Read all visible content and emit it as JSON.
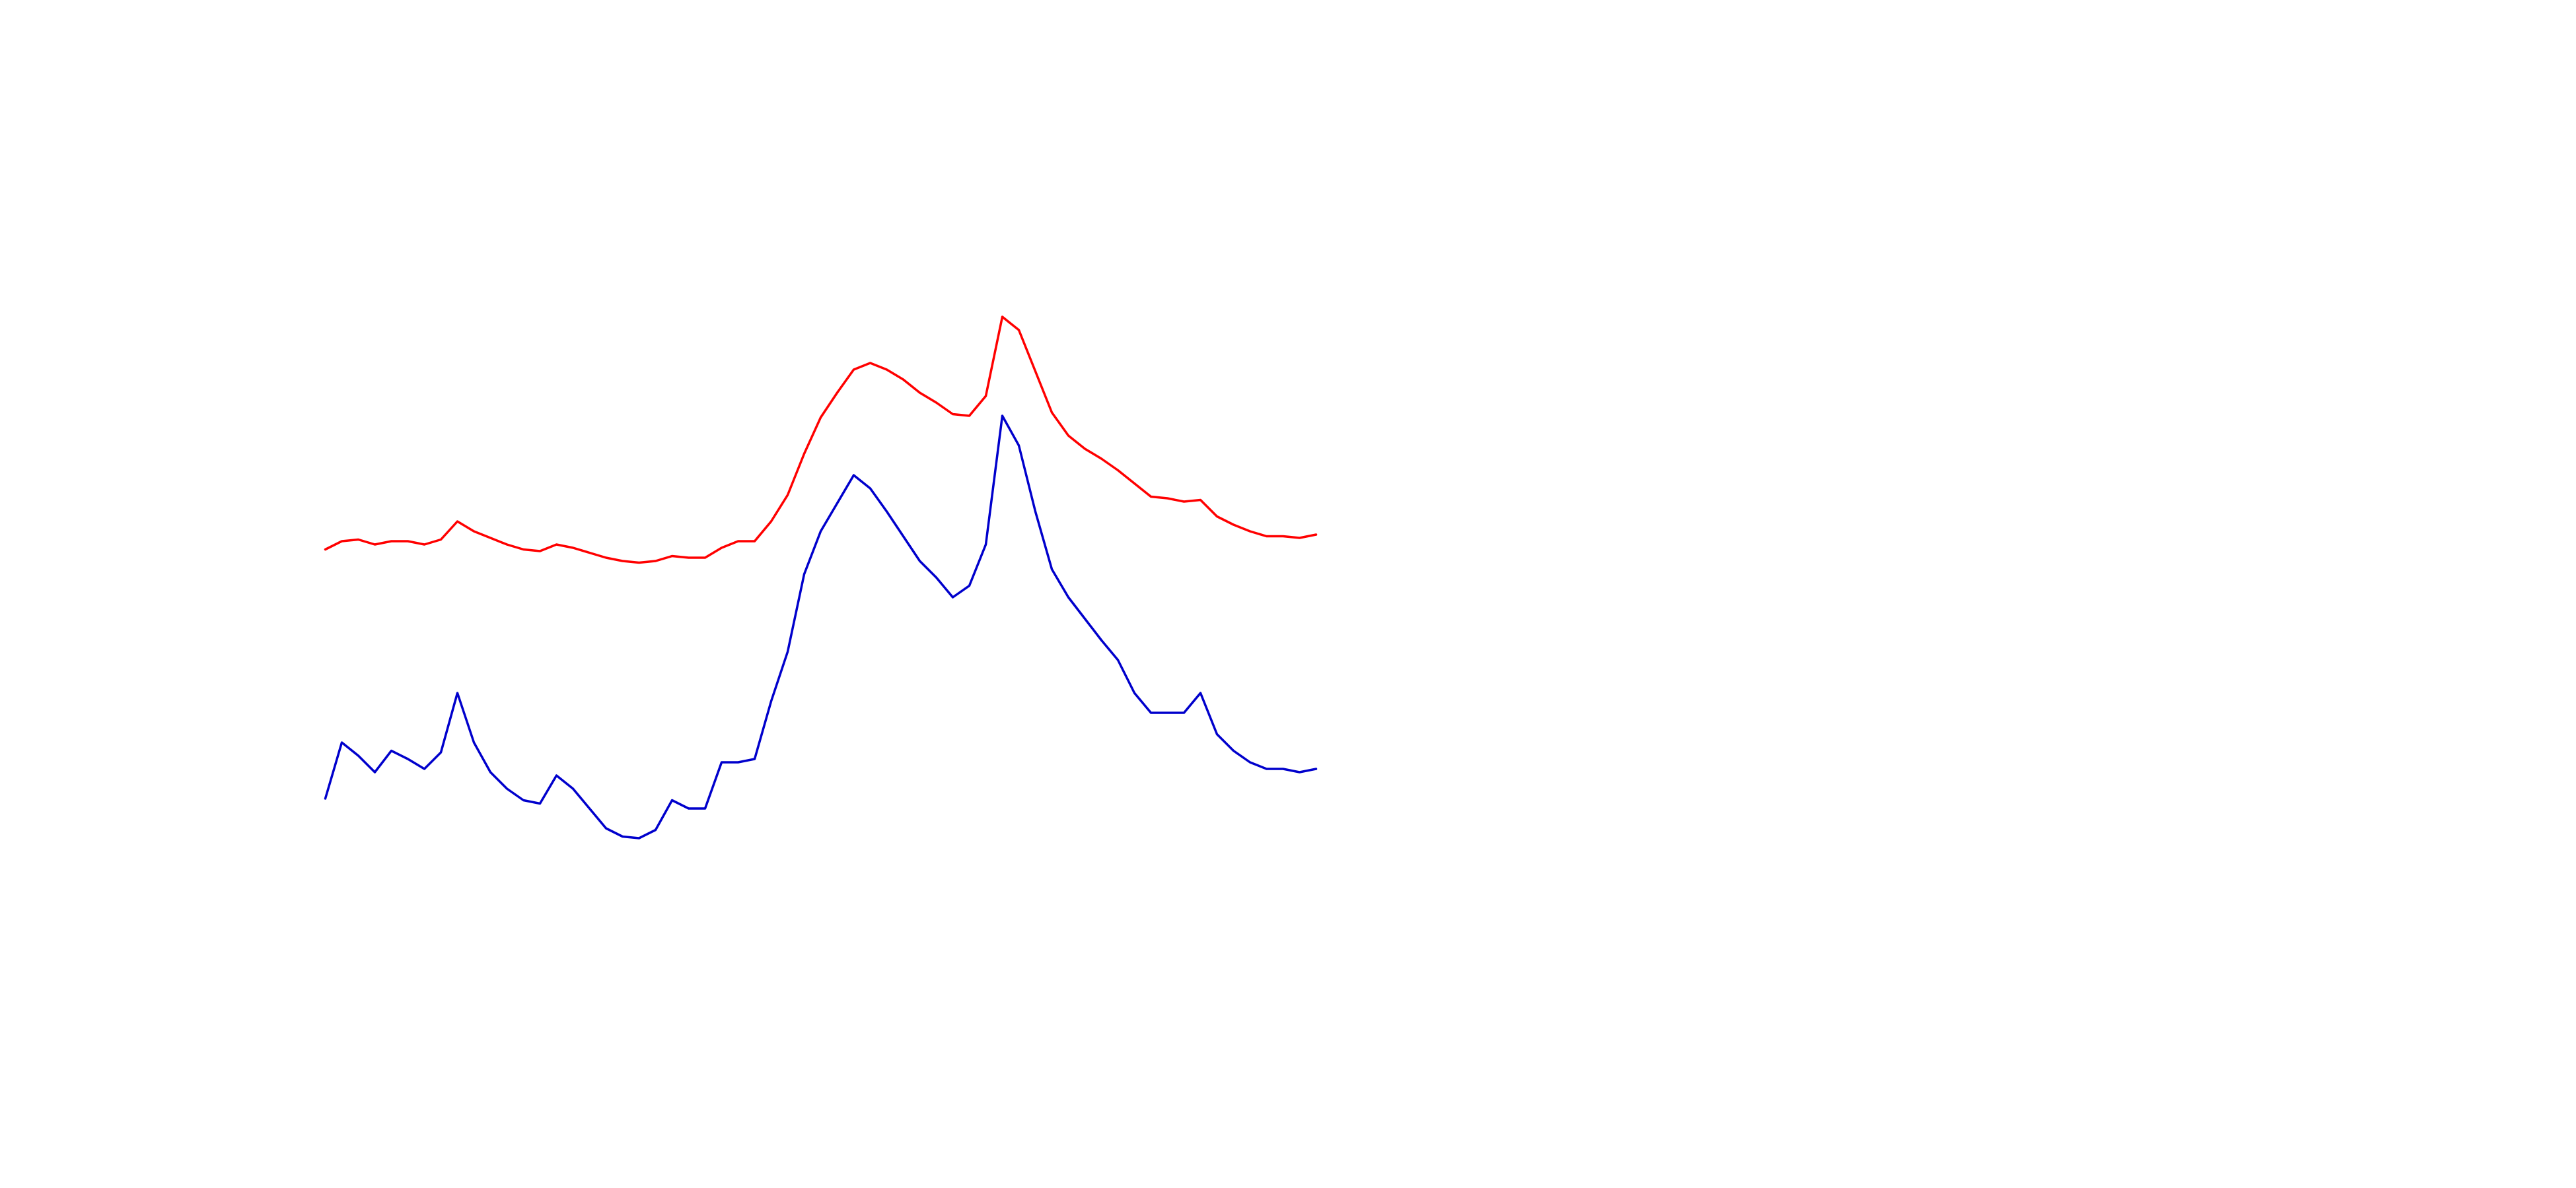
{
  "chart_data": {
    "type": "line",
    "x": [
      0,
      1,
      2,
      3,
      4,
      5,
      6,
      7,
      8,
      9,
      10,
      11,
      12,
      13,
      14,
      15,
      16,
      17,
      18,
      19,
      20,
      21,
      22,
      23,
      24,
      25,
      26,
      27,
      28,
      29,
      30,
      31,
      32,
      33,
      34,
      35,
      36,
      37,
      38,
      39,
      40,
      41,
      42,
      43,
      44,
      45,
      46,
      47,
      48,
      49,
      50,
      51,
      52,
      53,
      54,
      55,
      56,
      57,
      58,
      59,
      60
    ],
    "xlim": [
      0,
      60
    ],
    "ylim": [
      0,
      720
    ],
    "series": [
      {
        "color": "#ff0000",
        "values": [
          387,
          392,
          393,
          390,
          392,
          392,
          390,
          393,
          404,
          398,
          394,
          390,
          387,
          386,
          390,
          388,
          385,
          382,
          380,
          379,
          380,
          383,
          382,
          382,
          388,
          392,
          392,
          404,
          420,
          445,
          467,
          482,
          496,
          500,
          496,
          490,
          482,
          476,
          469,
          468,
          480,
          528,
          520,
          495,
          470,
          456,
          448,
          442,
          435,
          427,
          419,
          418,
          416,
          417,
          407,
          402,
          398,
          395,
          395,
          394,
          396
        ]
      },
      {
        "color": "#0000cc",
        "values": [
          236,
          270,
          262,
          252,
          265,
          260,
          254,
          264,
          300,
          270,
          252,
          242,
          235,
          233,
          250,
          242,
          230,
          218,
          213,
          212,
          217,
          235,
          230,
          230,
          258,
          258,
          260,
          295,
          325,
          372,
          398,
          415,
          432,
          424,
          410,
          395,
          380,
          370,
          358,
          365,
          390,
          468,
          450,
          410,
          375,
          358,
          345,
          332,
          320,
          300,
          288,
          288,
          288,
          300,
          275,
          265,
          258,
          254,
          254,
          252,
          254
        ]
      }
    ]
  }
}
